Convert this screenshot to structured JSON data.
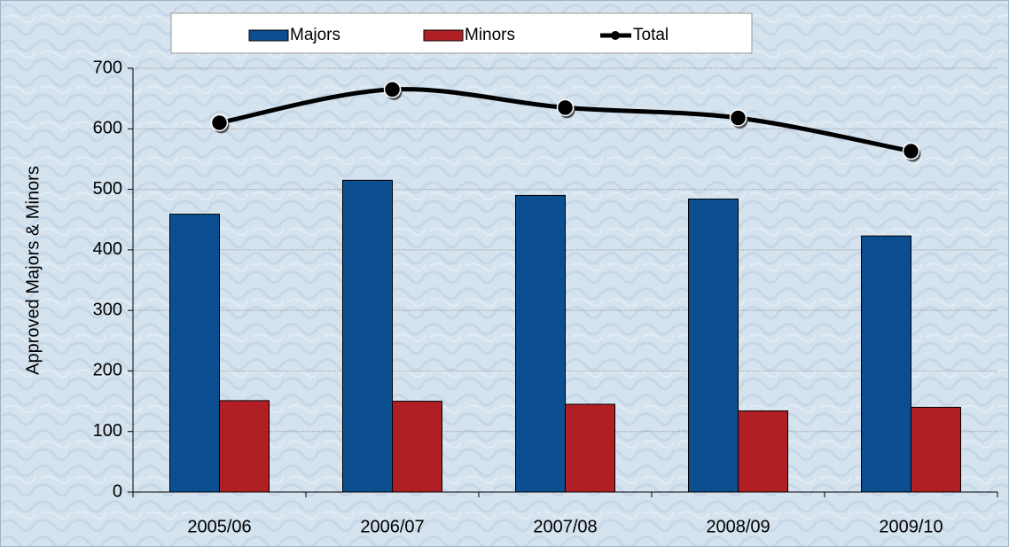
{
  "chart_data": {
    "type": "bar",
    "y_label": "Approved Majors & Minors",
    "categories": [
      "2005/06",
      "2006/07",
      "2007/08",
      "2008/09",
      "2009/10"
    ],
    "series": [
      {
        "name": "Majors",
        "type": "bar",
        "color": "#0b4f91",
        "values": [
          459,
          515,
          490,
          484,
          423
        ]
      },
      {
        "name": "Minors",
        "type": "bar",
        "color": "#b01f24",
        "values": [
          151,
          150,
          145,
          134,
          140
        ]
      },
      {
        "name": "Total",
        "type": "line",
        "color": "#000000",
        "values": [
          610,
          665,
          635,
          618,
          563
        ]
      }
    ],
    "ylim": [
      0,
      700
    ],
    "yticks": [
      0,
      100,
      200,
      300,
      400,
      500,
      600,
      700
    ],
    "grid": true,
    "legend": "top"
  }
}
